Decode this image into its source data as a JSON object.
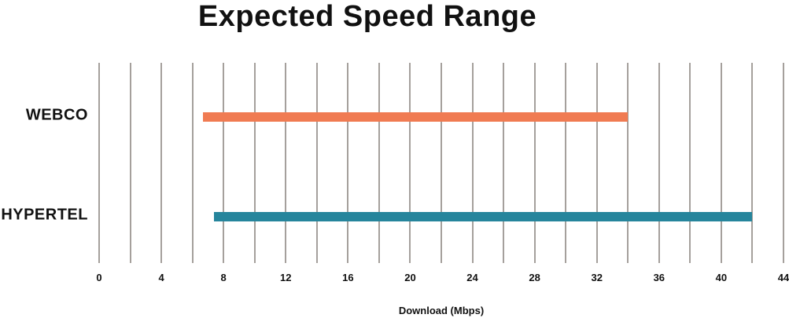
{
  "title": "Expected Speed Range",
  "chart_data": {
    "type": "bar",
    "subtype": "horizontal-range-bars",
    "title": "Expected Speed Range",
    "categories": [
      "WEBCO",
      "HYPERTEL"
    ],
    "series": [
      {
        "name": "WEBCO",
        "range_mbps": [
          6.7,
          34
        ],
        "color": "#f07b52"
      },
      {
        "name": "HYPERTEL",
        "range_mbps": [
          7.4,
          42
        ],
        "color": "#26859c"
      }
    ],
    "xlabel": "Download (Mbps)",
    "xlim": [
      0,
      44
    ],
    "x_major_tick_labels": [
      0,
      4,
      8,
      12,
      16,
      20,
      24,
      28,
      32,
      36,
      40,
      44
    ],
    "x_gridline_step": 2,
    "grid": true,
    "legend": false,
    "colors": {
      "gridline": "#a5a09c",
      "text": "#111111",
      "background": "#ffffff"
    }
  }
}
